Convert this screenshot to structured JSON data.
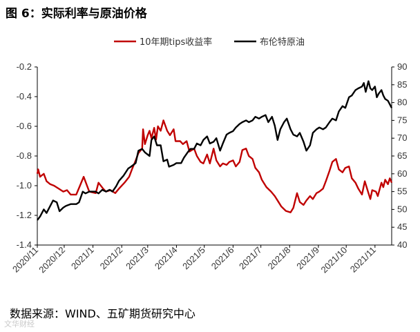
{
  "title": "图 6：实际利率与原油价格",
  "source": "数据来源：WIND、五矿期货研究中心",
  "watermark": "文华财经",
  "colors": {
    "tips": "#c00000",
    "brent": "#000000",
    "axis": "#000000"
  },
  "chart_data": {
    "type": "line",
    "legend_position": "top",
    "grid": false,
    "x_categories": [
      "2020/11",
      "2020/12",
      "2021/1",
      "2021/2",
      "2021/3",
      "2021/4",
      "2021/5",
      "2021/6",
      "2021/7",
      "2021/8",
      "2021/9",
      "2021/10",
      "2021/11"
    ],
    "x_range": [
      "2020-11-02",
      "2021-11-19"
    ],
    "y_left": {
      "min": -1.4,
      "max": -0.2,
      "step": 0.2,
      "ticks": [
        "-0.2",
        "-0.4",
        "-0.6",
        "-0.8",
        "-1.0",
        "-1.2",
        "-1.4"
      ]
    },
    "y_right": {
      "min": 40,
      "max": 90,
      "step": 5,
      "ticks": [
        "90",
        "85",
        "80",
        "75",
        "70",
        "65",
        "60",
        "55",
        "50",
        "45",
        "40"
      ]
    },
    "series": [
      {
        "name": "10年期tips收益率",
        "axis": "left",
        "points": [
          [
            "2020-11-02",
            -0.92
          ],
          [
            "2020-11-03",
            -0.89
          ],
          [
            "2020-11-05",
            -0.94
          ],
          [
            "2020-11-09",
            -0.92
          ],
          [
            "2020-11-12",
            -0.97
          ],
          [
            "2020-11-16",
            -0.99
          ],
          [
            "2020-11-20",
            -1.0
          ],
          [
            "2020-11-25",
            -1.02
          ],
          [
            "2020-11-30",
            -1.04
          ],
          [
            "2020-12-04",
            -1.03
          ],
          [
            "2020-12-08",
            -1.06
          ],
          [
            "2020-12-14",
            -1.06
          ],
          [
            "2020-12-18",
            -1.0
          ],
          [
            "2020-12-22",
            -0.94
          ],
          [
            "2020-12-28",
            -1.04
          ],
          [
            "2021-01-04",
            -1.05
          ],
          [
            "2021-01-07",
            -0.98
          ],
          [
            "2021-01-12",
            -1.02
          ],
          [
            "2021-01-15",
            -1.04
          ],
          [
            "2021-01-20",
            -1.03
          ],
          [
            "2021-01-25",
            -1.05
          ],
          [
            "2021-01-29",
            -1.02
          ],
          [
            "2021-02-04",
            -0.98
          ],
          [
            "2021-02-09",
            -0.94
          ],
          [
            "2021-02-12",
            -0.89
          ],
          [
            "2021-02-16",
            -0.83
          ],
          [
            "2021-02-19",
            -0.78
          ],
          [
            "2021-02-23",
            -0.75
          ],
          [
            "2021-02-24",
            -0.62
          ],
          [
            "2021-02-26",
            -0.72
          ],
          [
            "2021-03-01",
            -0.66
          ],
          [
            "2021-03-03",
            -0.63
          ],
          [
            "2021-03-05",
            -0.68
          ],
          [
            "2021-03-08",
            -0.61
          ],
          [
            "2021-03-10",
            -0.69
          ],
          [
            "2021-03-12",
            -0.6
          ],
          [
            "2021-03-15",
            -0.63
          ],
          [
            "2021-03-18",
            -0.56
          ],
          [
            "2021-03-22",
            -0.63
          ],
          [
            "2021-03-25",
            -0.66
          ],
          [
            "2021-03-29",
            -0.62
          ],
          [
            "2021-03-31",
            -0.7
          ],
          [
            "2021-04-05",
            -0.7
          ],
          [
            "2021-04-08",
            -0.72
          ],
          [
            "2021-04-12",
            -0.7
          ],
          [
            "2021-04-15",
            -0.77
          ],
          [
            "2021-04-20",
            -0.75
          ],
          [
            "2021-04-23",
            -0.8
          ],
          [
            "2021-04-27",
            -0.84
          ],
          [
            "2021-04-30",
            -0.85
          ],
          [
            "2021-05-04",
            -0.79
          ],
          [
            "2021-05-07",
            -0.85
          ],
          [
            "2021-05-11",
            -0.75
          ],
          [
            "2021-05-14",
            -0.83
          ],
          [
            "2021-05-18",
            -0.87
          ],
          [
            "2021-05-21",
            -0.85
          ],
          [
            "2021-05-25",
            -0.86
          ],
          [
            "2021-05-28",
            -0.84
          ],
          [
            "2021-06-01",
            -0.83
          ],
          [
            "2021-06-04",
            -0.87
          ],
          [
            "2021-06-08",
            -0.84
          ],
          [
            "2021-06-11",
            -0.76
          ],
          [
            "2021-06-15",
            -0.75
          ],
          [
            "2021-06-18",
            -0.8
          ],
          [
            "2021-06-22",
            -0.82
          ],
          [
            "2021-06-25",
            -0.88
          ],
          [
            "2021-06-29",
            -0.91
          ],
          [
            "2021-07-02",
            -0.96
          ],
          [
            "2021-07-07",
            -1.01
          ],
          [
            "2021-07-12",
            -1.04
          ],
          [
            "2021-07-16",
            -1.07
          ],
          [
            "2021-07-20",
            -1.11
          ],
          [
            "2021-07-23",
            -1.14
          ],
          [
            "2021-07-28",
            -1.17
          ],
          [
            "2021-08-02",
            -1.18
          ],
          [
            "2021-08-05",
            -1.15
          ],
          [
            "2021-08-09",
            -1.05
          ],
          [
            "2021-08-12",
            -1.11
          ],
          [
            "2021-08-16",
            -1.13
          ],
          [
            "2021-08-19",
            -1.1
          ],
          [
            "2021-08-23",
            -1.07
          ],
          [
            "2021-08-26",
            -1.09
          ],
          [
            "2021-08-30",
            -1.05
          ],
          [
            "2021-09-02",
            -1.04
          ],
          [
            "2021-09-06",
            -1.02
          ],
          [
            "2021-09-09",
            -0.97
          ],
          [
            "2021-09-13",
            -0.9
          ],
          [
            "2021-09-16",
            -0.84
          ],
          [
            "2021-09-20",
            -0.82
          ],
          [
            "2021-09-23",
            -0.89
          ],
          [
            "2021-09-27",
            -0.91
          ],
          [
            "2021-09-30",
            -0.88
          ],
          [
            "2021-10-04",
            -0.87
          ],
          [
            "2021-10-07",
            -0.95
          ],
          [
            "2021-10-11",
            -0.98
          ],
          [
            "2021-10-14",
            -1.02
          ],
          [
            "2021-10-18",
            -1.06
          ],
          [
            "2021-10-21",
            -0.97
          ],
          [
            "2021-10-25",
            -1.05
          ],
          [
            "2021-10-27",
            -1.09
          ],
          [
            "2021-10-29",
            -1.03
          ],
          [
            "2021-11-02",
            -1.04
          ],
          [
            "2021-11-04",
            -1.07
          ],
          [
            "2021-11-08",
            -0.98
          ],
          [
            "2021-11-10",
            -1.01
          ],
          [
            "2021-11-12",
            -0.96
          ],
          [
            "2021-11-15",
            -0.99
          ],
          [
            "2021-11-17",
            -0.95
          ],
          [
            "2021-11-19",
            -0.98
          ]
        ]
      },
      {
        "name": "布伦特原油",
        "axis": "right",
        "points": [
          [
            "2020-11-02",
            47.0
          ],
          [
            "2020-11-05",
            48.0
          ],
          [
            "2020-11-09",
            50.0
          ],
          [
            "2020-11-12",
            49.0
          ],
          [
            "2020-11-16",
            51.0
          ],
          [
            "2020-11-19",
            52.5
          ],
          [
            "2020-11-23",
            52.0
          ],
          [
            "2020-11-26",
            49.5
          ],
          [
            "2020-11-30",
            50.5
          ],
          [
            "2020-12-03",
            51.0
          ],
          [
            "2020-12-08",
            51.5
          ],
          [
            "2020-12-14",
            51.5
          ],
          [
            "2020-12-17",
            52.0
          ],
          [
            "2020-12-21",
            55.0
          ],
          [
            "2020-12-24",
            54.5
          ],
          [
            "2020-12-28",
            55.0
          ],
          [
            "2021-01-04",
            55.0
          ],
          [
            "2021-01-07",
            54.5
          ],
          [
            "2021-01-11",
            55.5
          ],
          [
            "2021-01-15",
            55.0
          ],
          [
            "2021-01-19",
            55.5
          ],
          [
            "2021-01-22",
            55.0
          ],
          [
            "2021-01-26",
            56.5
          ],
          [
            "2021-01-29",
            58.0
          ],
          [
            "2021-02-03",
            59.5
          ],
          [
            "2021-02-08",
            61.5
          ],
          [
            "2021-02-11",
            62.0
          ],
          [
            "2021-02-16",
            63.0
          ],
          [
            "2021-02-19",
            66.5
          ],
          [
            "2021-02-23",
            67.0
          ],
          [
            "2021-02-26",
            66.0
          ],
          [
            "2021-03-03",
            65.0
          ],
          [
            "2021-03-05",
            69.5
          ],
          [
            "2021-03-08",
            70.5
          ],
          [
            "2021-03-11",
            68.0
          ],
          [
            "2021-03-15",
            68.0
          ],
          [
            "2021-03-18",
            63.5
          ],
          [
            "2021-03-22",
            64.0
          ],
          [
            "2021-03-24",
            62.0
          ],
          [
            "2021-03-29",
            62.5
          ],
          [
            "2021-04-01",
            63.0
          ],
          [
            "2021-04-06",
            63.0
          ],
          [
            "2021-04-09",
            64.5
          ],
          [
            "2021-04-13",
            66.0
          ],
          [
            "2021-04-16",
            67.0
          ],
          [
            "2021-04-20",
            67.0
          ],
          [
            "2021-04-23",
            68.5
          ],
          [
            "2021-04-27",
            68.0
          ],
          [
            "2021-04-30",
            69.5
          ],
          [
            "2021-05-04",
            70.5
          ],
          [
            "2021-05-07",
            68.5
          ],
          [
            "2021-05-11",
            69.0
          ],
          [
            "2021-05-14",
            70.0
          ],
          [
            "2021-05-18",
            66.5
          ],
          [
            "2021-05-21",
            68.5
          ],
          [
            "2021-05-25",
            71.0
          ],
          [
            "2021-05-28",
            71.5
          ],
          [
            "2021-06-01",
            72.0
          ],
          [
            "2021-06-04",
            73.0
          ],
          [
            "2021-06-08",
            74.0
          ],
          [
            "2021-06-11",
            74.5
          ],
          [
            "2021-06-15",
            75.0
          ],
          [
            "2021-06-18",
            74.5
          ],
          [
            "2021-06-22",
            75.0
          ],
          [
            "2021-06-25",
            76.0
          ],
          [
            "2021-06-29",
            75.5
          ],
          [
            "2021-07-02",
            76.0
          ],
          [
            "2021-07-06",
            76.5
          ],
          [
            "2021-07-09",
            74.5
          ],
          [
            "2021-07-13",
            76.0
          ],
          [
            "2021-07-16",
            73.5
          ],
          [
            "2021-07-19",
            69.5
          ],
          [
            "2021-07-22",
            72.5
          ],
          [
            "2021-07-26",
            74.5
          ],
          [
            "2021-07-29",
            75.5
          ],
          [
            "2021-08-02",
            72.5
          ],
          [
            "2021-08-05",
            71.0
          ],
          [
            "2021-08-09",
            70.5
          ],
          [
            "2021-08-12",
            71.5
          ],
          [
            "2021-08-16",
            69.0
          ],
          [
            "2021-08-19",
            66.5
          ],
          [
            "2021-08-23",
            68.0
          ],
          [
            "2021-08-26",
            71.5
          ],
          [
            "2021-08-30",
            72.5
          ],
          [
            "2021-09-02",
            73.0
          ],
          [
            "2021-09-06",
            72.5
          ],
          [
            "2021-09-09",
            73.0
          ],
          [
            "2021-09-13",
            74.5
          ],
          [
            "2021-09-16",
            75.5
          ],
          [
            "2021-09-20",
            75.0
          ],
          [
            "2021-09-23",
            77.5
          ],
          [
            "2021-09-27",
            79.0
          ],
          [
            "2021-09-30",
            78.5
          ],
          [
            "2021-10-04",
            81.5
          ],
          [
            "2021-10-07",
            82.0
          ],
          [
            "2021-10-11",
            83.5
          ],
          [
            "2021-10-14",
            84.0
          ],
          [
            "2021-10-18",
            84.5
          ],
          [
            "2021-10-20",
            85.5
          ],
          [
            "2021-10-22",
            83.0
          ],
          [
            "2021-10-25",
            86.0
          ],
          [
            "2021-10-27",
            84.0
          ],
          [
            "2021-10-29",
            83.5
          ],
          [
            "2021-11-01",
            84.5
          ],
          [
            "2021-11-03",
            81.5
          ],
          [
            "2021-11-05",
            82.5
          ],
          [
            "2021-11-08",
            83.5
          ],
          [
            "2021-11-10",
            82.0
          ],
          [
            "2021-11-12",
            81.0
          ],
          [
            "2021-11-15",
            80.5
          ],
          [
            "2021-11-17",
            79.5
          ],
          [
            "2021-11-19",
            78.5
          ]
        ]
      }
    ]
  }
}
